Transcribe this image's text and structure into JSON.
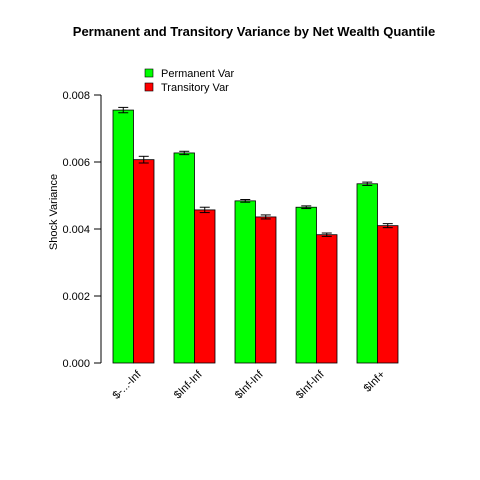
{
  "chart_data": {
    "type": "bar",
    "title": "Permanent and Transitory Variance by  Net Wealth Quantile",
    "xlabel": "",
    "ylabel": "Shock Variance",
    "ylim": [
      0,
      0.008
    ],
    "yticks": [
      "0.000",
      "0.002",
      "0.004",
      "0.006",
      "0.008"
    ],
    "categories": [
      "$-...-Inf",
      "$Inf-Inf",
      "$Inf-Inf",
      "$Inf-Inf",
      "$Inf+"
    ],
    "series": [
      {
        "name": "Permanent Var",
        "color": "#00ff00",
        "values": [
          0.00755,
          0.00627,
          0.00484,
          0.00465,
          0.00535
        ],
        "err": [
          8e-05,
          5e-05,
          4e-05,
          4e-05,
          5e-05
        ]
      },
      {
        "name": "Transitory Var",
        "color": "#ff0000",
        "values": [
          0.00607,
          0.00457,
          0.00436,
          0.00383,
          0.0041
        ],
        "err": [
          0.0001,
          8e-05,
          6e-05,
          5e-05,
          6e-05
        ]
      }
    ],
    "legend_position": "top-left",
    "grid": false,
    "error_bars": true
  }
}
